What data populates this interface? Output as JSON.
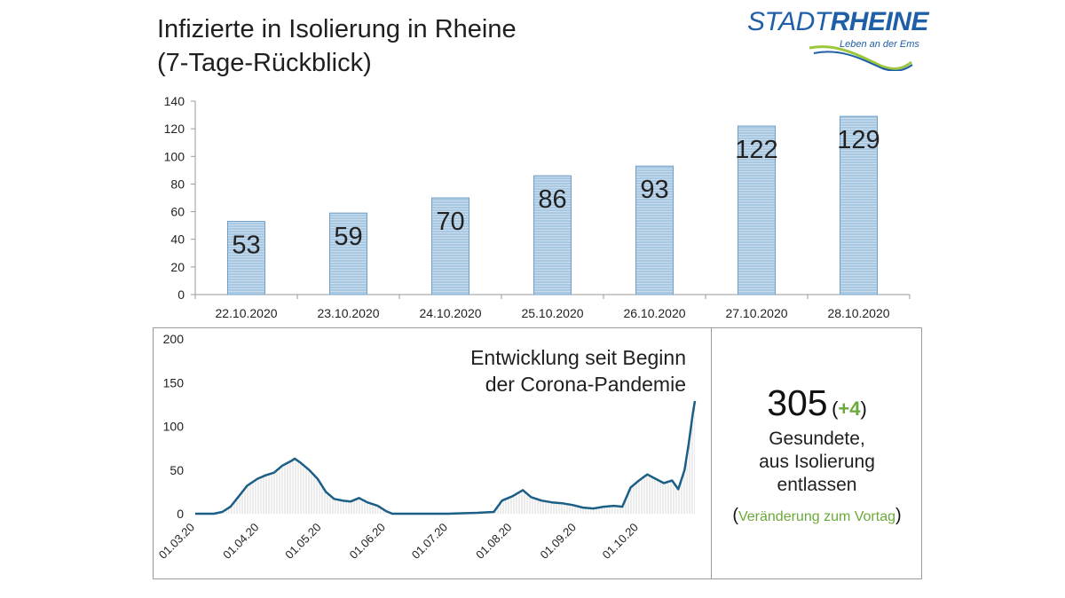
{
  "header": {
    "title_line1": "Infizierte in Isolierung in Rheine",
    "title_line2": "(7-Tage-Rückblick)"
  },
  "logo": {
    "word1": "STADT",
    "word2": "RHEINE",
    "tagline": "Leben an der Ems"
  },
  "stat": {
    "number": "305",
    "delta": "+4",
    "label_line1": "Gesundete,",
    "label_line2": "aus Isolierung",
    "label_line3": "entlassen",
    "note": "Veränderung zum Vortag"
  },
  "colors": {
    "bar_fill": "#a9c9e3",
    "bar_stroke": "#6f9fc8",
    "line": "#1b5e86",
    "area_fill": "#d9d9d9",
    "accent_green": "#6aaa3a",
    "logo_blue": "#1f5fa8"
  },
  "chart_data": [
    {
      "type": "bar",
      "title": "",
      "categories": [
        "22.10.2020",
        "23.10.2020",
        "24.10.2020",
        "25.10.2020",
        "26.10.2020",
        "27.10.2020",
        "28.10.2020"
      ],
      "values": [
        53,
        59,
        70,
        86,
        93,
        122,
        129
      ],
      "ylim": [
        0,
        140
      ],
      "yticks": [
        0,
        20,
        40,
        60,
        80,
        100,
        120,
        140
      ],
      "grid": false,
      "data_labels": true
    },
    {
      "type": "area",
      "title": "Entwicklung seit Beginn der Corona-Pandemie",
      "title_line1": "Entwicklung seit Beginn",
      "title_line2": "der Corona-Pandemie",
      "x_labels": [
        "01.03.20",
        "01.04.20",
        "01.05.20",
        "01.06.20",
        "01.07.20",
        "01.08.20",
        "01.09.20",
        "01.10.20"
      ],
      "x_start": "2020-03-01",
      "x_end": "2020-10-28",
      "ylim": [
        0,
        200
      ],
      "yticks": [
        0,
        50,
        100,
        150,
        200
      ],
      "grid": false,
      "series": [
        {
          "points": [
            [
              "2020-03-01",
              0
            ],
            [
              "2020-03-10",
              0
            ],
            [
              "2020-03-14",
              2
            ],
            [
              "2020-03-18",
              8
            ],
            [
              "2020-03-22",
              20
            ],
            [
              "2020-03-26",
              32
            ],
            [
              "2020-03-31",
              40
            ],
            [
              "2020-04-04",
              44
            ],
            [
              "2020-04-08",
              47
            ],
            [
              "2020-04-12",
              55
            ],
            [
              "2020-04-16",
              60
            ],
            [
              "2020-04-18",
              63
            ],
            [
              "2020-04-21",
              58
            ],
            [
              "2020-04-25",
              50
            ],
            [
              "2020-04-29",
              40
            ],
            [
              "2020-05-03",
              25
            ],
            [
              "2020-05-07",
              17
            ],
            [
              "2020-05-11",
              15
            ],
            [
              "2020-05-15",
              14
            ],
            [
              "2020-05-19",
              18
            ],
            [
              "2020-05-23",
              13
            ],
            [
              "2020-05-28",
              9
            ],
            [
              "2020-06-01",
              3
            ],
            [
              "2020-06-04",
              0
            ],
            [
              "2020-07-01",
              0
            ],
            [
              "2020-07-15",
              1
            ],
            [
              "2020-07-23",
              2
            ],
            [
              "2020-07-27",
              15
            ],
            [
              "2020-08-01",
              20
            ],
            [
              "2020-08-06",
              27
            ],
            [
              "2020-08-10",
              19
            ],
            [
              "2020-08-15",
              15
            ],
            [
              "2020-08-20",
              13
            ],
            [
              "2020-08-25",
              12
            ],
            [
              "2020-08-30",
              10
            ],
            [
              "2020-09-04",
              7
            ],
            [
              "2020-09-09",
              6
            ],
            [
              "2020-09-14",
              8
            ],
            [
              "2020-09-19",
              9
            ],
            [
              "2020-09-23",
              8
            ],
            [
              "2020-09-27",
              30
            ],
            [
              "2020-10-01",
              38
            ],
            [
              "2020-10-05",
              45
            ],
            [
              "2020-10-09",
              40
            ],
            [
              "2020-10-13",
              35
            ],
            [
              "2020-10-17",
              38
            ],
            [
              "2020-10-20",
              28
            ],
            [
              "2020-10-23",
              50
            ],
            [
              "2020-10-25",
              80
            ],
            [
              "2020-10-27",
              115
            ],
            [
              "2020-10-28",
              129
            ]
          ]
        }
      ]
    }
  ]
}
